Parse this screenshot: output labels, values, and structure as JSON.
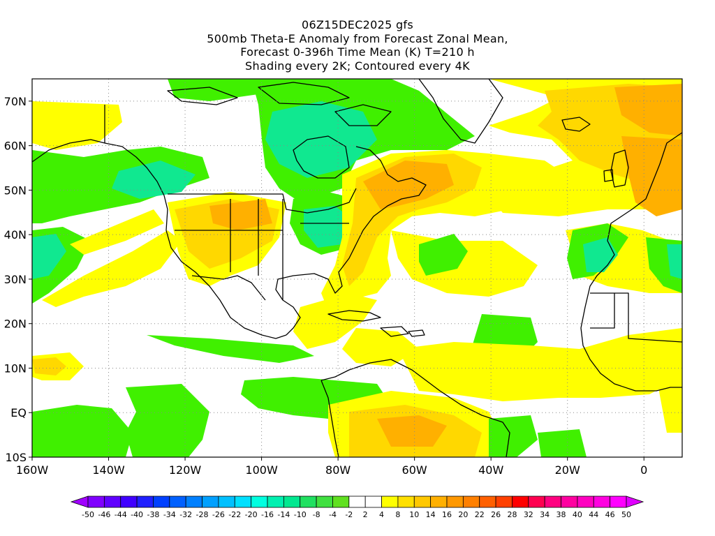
{
  "title": {
    "line1": "06Z15DEC2025 gfs",
    "line2": "500mb Theta-E Anomaly from Forecast Zonal Mean,",
    "line3": "Forecast 0-396h Time Mean (K) T=210 h",
    "line4": "Shading every 2K; Contoured every 4K"
  },
  "map": {
    "lon_range": [
      -160,
      10
    ],
    "lat_range": [
      -10,
      75
    ],
    "lon_ticks": [
      "160W",
      "140W",
      "120W",
      "100W",
      "80W",
      "60W",
      "40W",
      "20W",
      "0"
    ],
    "lat_ticks": [
      "70N",
      "60N",
      "50N",
      "40N",
      "30N",
      "20N",
      "10N",
      "EQ",
      "10S"
    ],
    "grid": "dotted"
  },
  "colorbar": {
    "labels": [
      "-50",
      "-46",
      "-44",
      "-40",
      "-38",
      "-34",
      "-32",
      "-28",
      "-26",
      "-22",
      "-20",
      "-16",
      "-14",
      "-10",
      "-8",
      "-4",
      "-2",
      "2",
      "4",
      "8",
      "10",
      "14",
      "16",
      "20",
      "22",
      "26",
      "28",
      "32",
      "34",
      "38",
      "40",
      "44",
      "46",
      "50"
    ],
    "colors": [
      "#a000ff",
      "#8000ff",
      "#6000ff",
      "#4000ff",
      "#2020ff",
      "#0040ff",
      "#0060ff",
      "#0080ff",
      "#00a0ff",
      "#00c0ff",
      "#00e0ff",
      "#00ffe0",
      "#00f0b0",
      "#00e890",
      "#20e060",
      "#40e040",
      "#60e020",
      "#ffffff",
      "#ffffff",
      "#ffff00",
      "#ffe000",
      "#ffc800",
      "#ffb000",
      "#ff9800",
      "#ff8000",
      "#ff6000",
      "#ff4000",
      "#ff0000",
      "#ff0050",
      "#ff0080",
      "#ff00a0",
      "#ff00c0",
      "#ff00e0",
      "#ff00ff",
      "#e000ff"
    ]
  },
  "field_colors": {
    "yellow": "#ffff00",
    "gold": "#ffd800",
    "orange": "#ffb000",
    "dark_orange": "#ff9a00",
    "green": "#40f000",
    "lime": "#80f000",
    "teal": "#10e890",
    "aqua": "#20e8b0"
  }
}
